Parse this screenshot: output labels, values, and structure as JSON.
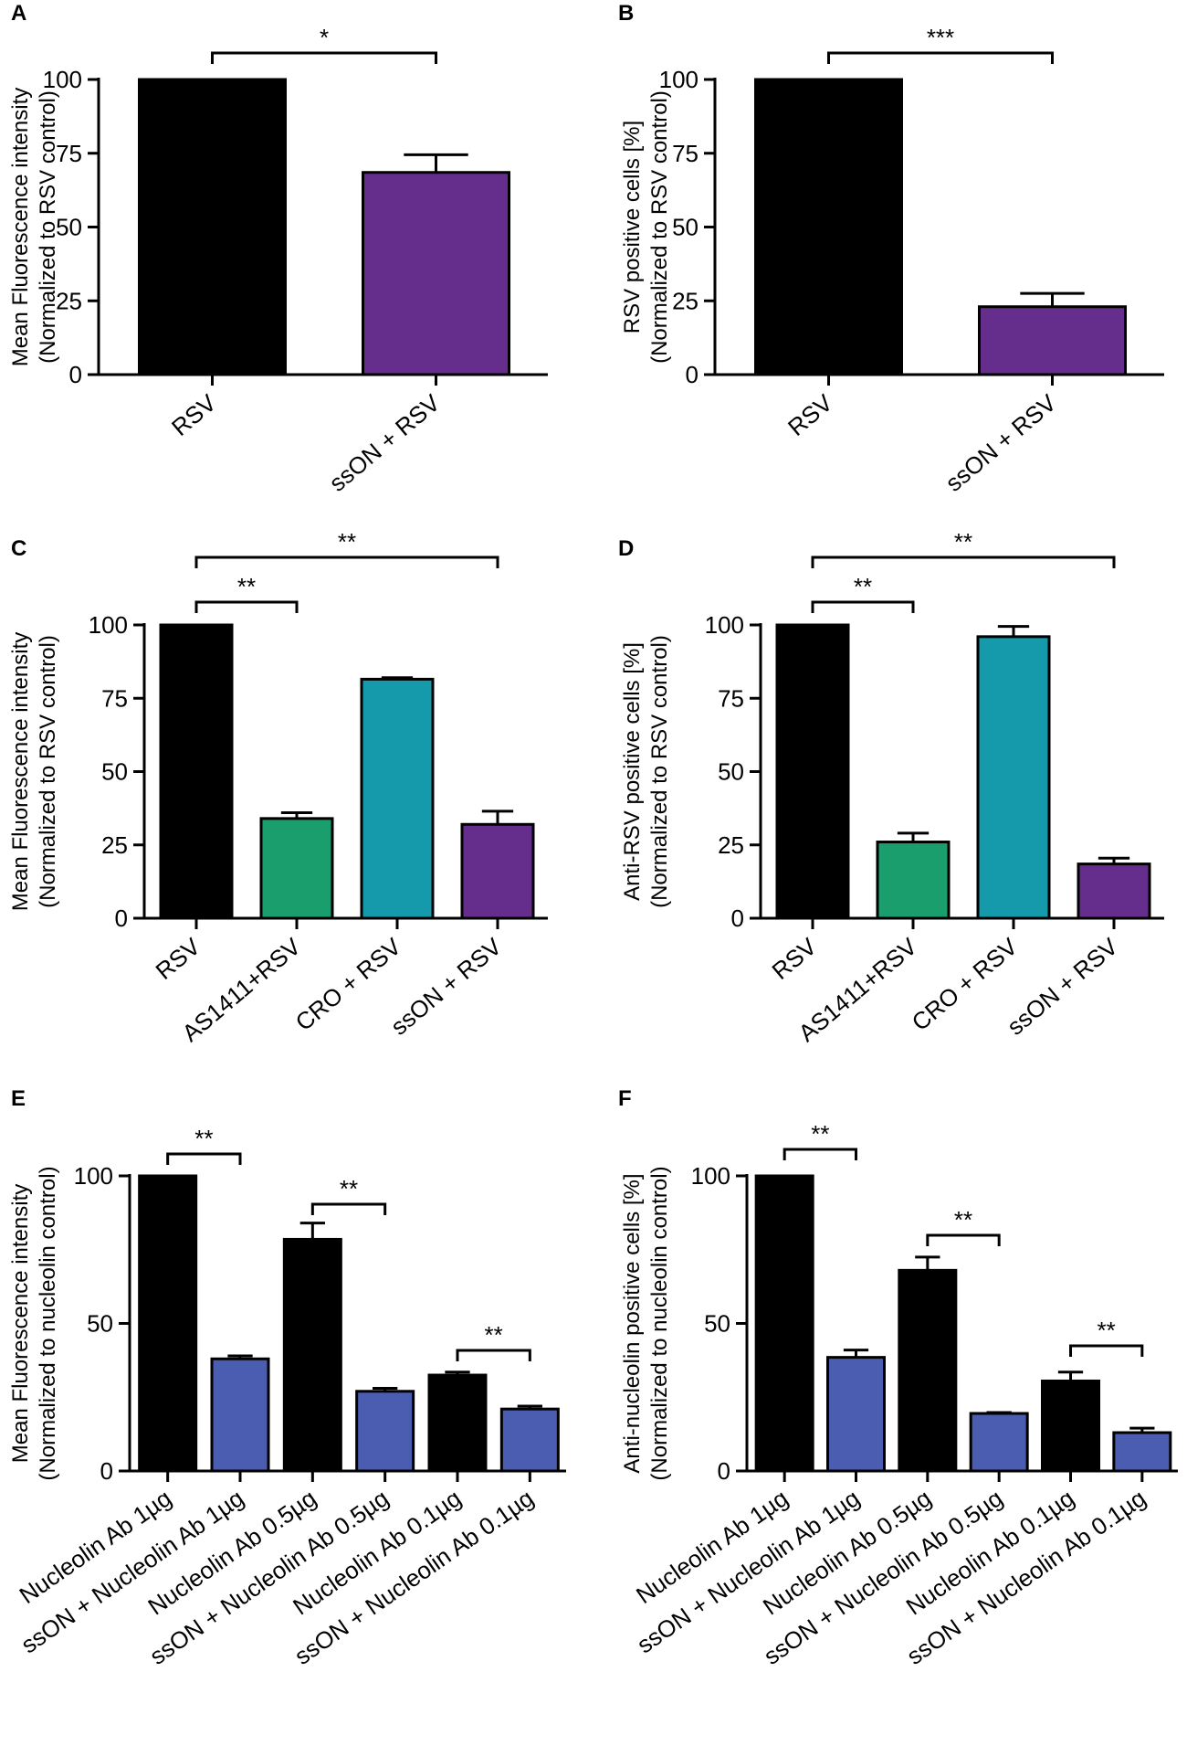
{
  "chart_data": [
    {
      "panel": "A",
      "type": "bar",
      "ylabel": [
        "Mean Fluorescence intensity",
        "(Normalized to RSV control)"
      ],
      "ylim": [
        0,
        100
      ],
      "yticks": [
        0,
        25,
        50,
        75,
        100
      ],
      "categories": [
        "RSV",
        "ssON + RSV"
      ],
      "values": [
        100,
        68.5
      ],
      "errors": [
        0,
        6
      ],
      "colors": [
        "#000000",
        "#652d8c"
      ],
      "significance": [
        {
          "from": 0,
          "to": 1,
          "label": "*"
        }
      ]
    },
    {
      "panel": "B",
      "type": "bar",
      "ylabel": [
        "RSV positive cells [%]",
        "(Normalized to RSV control)"
      ],
      "ylim": [
        0,
        100
      ],
      "yticks": [
        0,
        25,
        50,
        75,
        100
      ],
      "categories": [
        "RSV",
        "ssON + RSV"
      ],
      "values": [
        100,
        23
      ],
      "errors": [
        0,
        4.5
      ],
      "colors": [
        "#000000",
        "#652d8c"
      ],
      "significance": [
        {
          "from": 0,
          "to": 1,
          "label": "***"
        }
      ]
    },
    {
      "panel": "C",
      "type": "bar",
      "ylabel": [
        "Mean Fluorescence intensity",
        "(Normalized to RSV control)"
      ],
      "ylim": [
        0,
        100
      ],
      "yticks": [
        0,
        25,
        50,
        75,
        100
      ],
      "categories": [
        "RSV",
        "AS1411+RSV",
        "CRO + RSV",
        "ssON + RSV"
      ],
      "values": [
        100,
        34,
        81.5,
        32
      ],
      "errors": [
        0,
        2,
        0.5,
        4.5
      ],
      "colors": [
        "#000000",
        "#1a9e6e",
        "#149aab",
        "#652d8c"
      ],
      "significance": [
        {
          "from": 0,
          "to": 1,
          "label": "**"
        },
        {
          "from": 0,
          "to": 3,
          "label": "**"
        }
      ]
    },
    {
      "panel": "D",
      "type": "bar",
      "ylabel": [
        "Anti-RSV positive cells [%]",
        "(Normalized to RSV control)"
      ],
      "ylim": [
        0,
        100
      ],
      "yticks": [
        0,
        25,
        50,
        75,
        100
      ],
      "categories": [
        "RSV",
        "AS1411+RSV",
        "CRO + RSV",
        "ssON + RSV"
      ],
      "values": [
        100,
        26,
        96,
        18.5
      ],
      "errors": [
        0,
        3,
        3.5,
        2
      ],
      "colors": [
        "#000000",
        "#1a9e6e",
        "#149aab",
        "#652d8c"
      ],
      "significance": [
        {
          "from": 0,
          "to": 1,
          "label": "**"
        },
        {
          "from": 0,
          "to": 3,
          "label": "**"
        }
      ]
    },
    {
      "panel": "E",
      "type": "bar",
      "ylabel": [
        "Mean Fluorescence intensity",
        "(Normalized to nucleolin control)"
      ],
      "ylim": [
        0,
        100
      ],
      "yticks": [
        0,
        50,
        100
      ],
      "categories": [
        "Nucleolin Ab 1µg",
        "ssON + Nucleolin Ab 1µg",
        "Nucleolin Ab 0.5µg",
        "ssON + Nucleolin Ab 0.5µg",
        "Nucleolin Ab 0.1µg",
        "ssON + Nucleolin Ab 0.1µg"
      ],
      "values": [
        100,
        38,
        78.5,
        27,
        32.5,
        21
      ],
      "errors": [
        0,
        1,
        5.5,
        1,
        1,
        1
      ],
      "colors": [
        "#000000",
        "#4a5db0",
        "#000000",
        "#4a5db0",
        "#000000",
        "#4a5db0"
      ],
      "significance": [
        {
          "from": 0,
          "to": 1,
          "label": "**"
        },
        {
          "from": 2,
          "to": 3,
          "label": "**"
        },
        {
          "from": 4,
          "to": 5,
          "label": "**"
        }
      ]
    },
    {
      "panel": "F",
      "type": "bar",
      "ylabel": [
        "Anti-nucleolin positive cells [%]",
        "(Normalized to nucleolin control)"
      ],
      "ylim": [
        0,
        100
      ],
      "yticks": [
        0,
        50,
        100
      ],
      "categories": [
        "Nucleolin Ab 1µg",
        "ssON + Nucleolin Ab 1µg",
        "Nucleolin Ab 0.5µg",
        "ssON + Nucleolin Ab 0.5µg",
        "Nucleolin Ab 0.1µg",
        "ssON + Nucleolin Ab 0.1µg"
      ],
      "values": [
        100,
        38.5,
        68,
        19.5,
        30.5,
        13
      ],
      "errors": [
        0,
        2.5,
        4.5,
        0.3,
        3,
        1.5
      ],
      "colors": [
        "#000000",
        "#4a5db0",
        "#000000",
        "#4a5db0",
        "#000000",
        "#4a5db0"
      ],
      "significance": [
        {
          "from": 0,
          "to": 1,
          "label": "**"
        },
        {
          "from": 2,
          "to": 3,
          "label": "**"
        },
        {
          "from": 4,
          "to": 5,
          "label": "**"
        }
      ]
    }
  ]
}
